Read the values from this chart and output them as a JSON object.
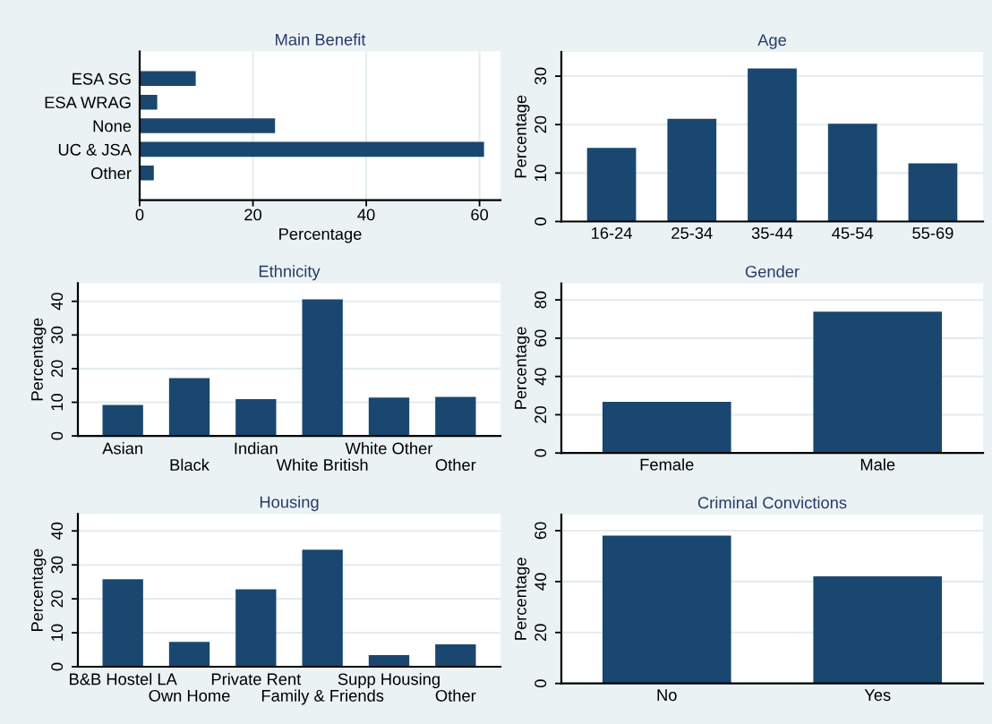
{
  "chart_data": [
    {
      "type": "bar",
      "orientation": "horizontal",
      "title": "Main Benefit",
      "xlabel": "Percentage",
      "categories": [
        "ESA SG",
        "ESA WRAG",
        "None",
        "UC & JSA",
        "Other"
      ],
      "values": [
        9.9,
        3.1,
        23.9,
        60.8,
        2.5
      ],
      "color": "#1a476f",
      "xlim": [
        0,
        63.7
      ],
      "xticks": [
        0,
        20,
        40,
        60
      ],
      "grid": "x"
    },
    {
      "type": "bar",
      "title": "Age",
      "ylabel": "Percentage",
      "categories": [
        "16-24",
        "25-34",
        "35-44",
        "45-54",
        "55-69"
      ],
      "values": [
        15.2,
        21.2,
        31.6,
        20.2,
        12.0
      ],
      "color": "#1a476f",
      "ylim": [
        0,
        35
      ],
      "yticks": [
        0,
        10,
        20,
        30
      ],
      "grid": "y"
    },
    {
      "type": "bar",
      "title": "Ethnicity",
      "ylabel": "Percentage",
      "categories": [
        "Asian",
        "Black",
        "Indian",
        "White British",
        "White Other",
        "Other"
      ],
      "values": [
        9.2,
        17.2,
        10.9,
        40.6,
        11.4,
        11.6
      ],
      "color": "#1a476f",
      "ylim": [
        0,
        45.4
      ],
      "yticks": [
        0,
        10,
        20,
        30,
        40
      ],
      "grid": "y"
    },
    {
      "type": "bar",
      "title": "Gender",
      "ylabel": "Percentage",
      "categories": [
        "Female",
        "Male"
      ],
      "values": [
        26.7,
        73.8
      ],
      "color": "#1a476f",
      "ylim": [
        0,
        88.6
      ],
      "yticks": [
        0,
        20,
        40,
        60,
        80
      ],
      "grid": "y"
    },
    {
      "type": "bar",
      "title": "Housing",
      "ylabel": "Percentage",
      "categories": [
        "B&B Hostel LA",
        "Own Home",
        "Private Rent",
        "Family & Friends",
        "Supp Housing",
        "Other"
      ],
      "values": [
        25.8,
        7.3,
        22.8,
        34.5,
        3.4,
        6.6
      ],
      "color": "#1a476f",
      "ylim": [
        0,
        45
      ],
      "yticks": [
        0,
        10,
        20,
        30,
        40
      ],
      "grid": "y"
    },
    {
      "type": "bar",
      "title": "Criminal Convictions",
      "ylabel": "Percentage",
      "categories": [
        "No",
        "Yes"
      ],
      "values": [
        58.0,
        42.1
      ],
      "color": "#1a476f",
      "ylim": [
        0,
        66.3
      ],
      "yticks": [
        0,
        20,
        40,
        60
      ],
      "grid": "y"
    }
  ]
}
